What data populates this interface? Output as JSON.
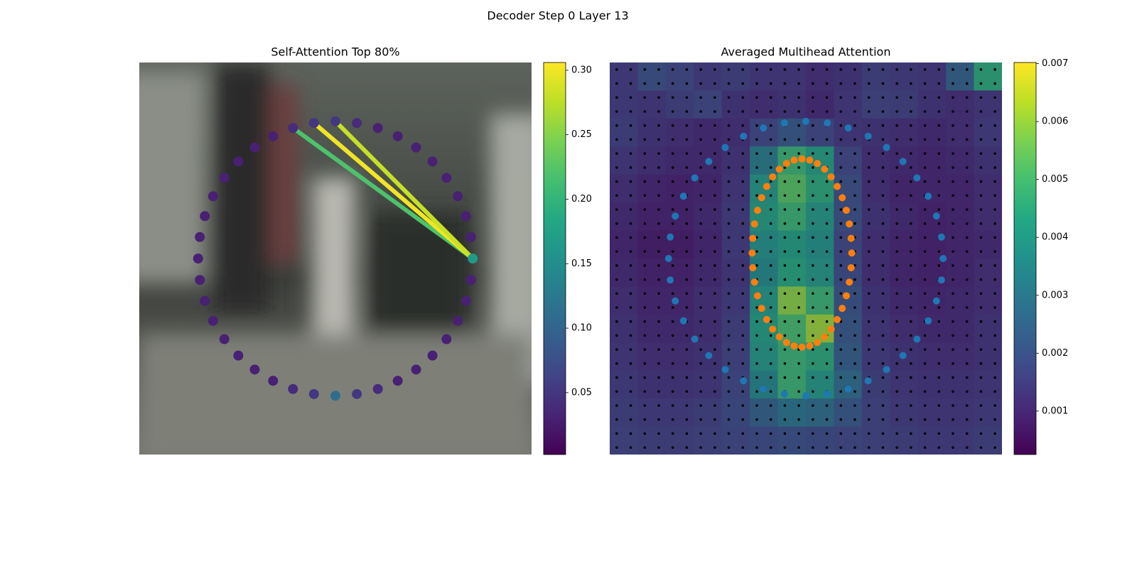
{
  "title": "Decoder Step 0 Layer 13",
  "chart_data": [
    {
      "type": "attention-scatter",
      "title": "Self-Attention Top 80%",
      "xlim": [
        0,
        100
      ],
      "ylim": [
        100,
        0
      ],
      "x": [
        85,
        84.57,
        83.29,
        81.19,
        78.32,
        74.75,
        70.57,
        65.89,
        60.82,
        55.47,
        50,
        44.53,
        39.18,
        34.11,
        29.43,
        25.25,
        21.68,
        18.81,
        16.71,
        15.43,
        15,
        15.43,
        16.71,
        18.81,
        21.68,
        25.25,
        29.43,
        34.11,
        39.18,
        44.53,
        50,
        55.47,
        60.82,
        65.89,
        70.57,
        74.75,
        78.32,
        81.19,
        83.29,
        84.57
      ],
      "y": [
        50,
        55.47,
        60.82,
        65.89,
        70.57,
        74.75,
        78.32,
        81.19,
        83.29,
        84.57,
        85,
        84.57,
        83.29,
        81.19,
        78.32,
        74.75,
        70.57,
        65.89,
        60.82,
        55.47,
        50,
        44.53,
        39.18,
        34.11,
        29.43,
        25.25,
        21.68,
        18.81,
        16.71,
        15.43,
        15,
        15.43,
        16.71,
        18.81,
        21.68,
        25.25,
        29.43,
        34.11,
        39.18,
        44.53
      ],
      "values": [
        0.165,
        0.03,
        0.03,
        0.03,
        0.03,
        0.03,
        0.03,
        0.03,
        0.04,
        0.05,
        0.11,
        0.05,
        0.04,
        0.03,
        0.03,
        0.03,
        0.03,
        0.03,
        0.03,
        0.03,
        0.03,
        0.03,
        0.03,
        0.03,
        0.03,
        0.03,
        0.03,
        0.03,
        0.04,
        0.05,
        0.05,
        0.04,
        0.03,
        0.03,
        0.03,
        0.03,
        0.03,
        0.03,
        0.03,
        0.03
      ],
      "links": [
        {
          "from": 0,
          "to": 28,
          "value": 0.22
        },
        {
          "from": 0,
          "to": 29,
          "value": 0.3
        },
        {
          "from": 0,
          "to": 30,
          "value": 0.28
        }
      ],
      "cmap": "viridis",
      "clim": [
        0.002,
        0.306
      ],
      "cticks": [
        0.05,
        {
          "value": 0.1,
          "label": "0.10"
        },
        0.15,
        {
          "value": 0.2,
          "label": "0.20"
        },
        0.25,
        {
          "value": 0.3,
          "label": "0.30"
        }
      ]
    },
    {
      "type": "heatmap",
      "title": "Averaged Multihead Attention",
      "xlim": [
        0,
        100
      ],
      "ylim": [
        100,
        0
      ],
      "values": [
        [
          0.0015,
          0.002,
          0.0018,
          0.0015,
          0.0016,
          0.0014,
          0.0014,
          0.0012,
          0.0013,
          0.0016,
          0.0015,
          0.0014,
          0.0025,
          0.0045
        ],
        [
          0.0015,
          0.0014,
          0.0016,
          0.0018,
          0.0013,
          0.0012,
          0.0013,
          0.0011,
          0.0014,
          0.0017,
          0.0016,
          0.0013,
          0.0012,
          0.0014
        ],
        [
          0.0016,
          0.0013,
          0.0012,
          0.0011,
          0.0012,
          0.0018,
          0.0022,
          0.0018,
          0.0014,
          0.0013,
          0.0012,
          0.0011,
          0.0012,
          0.0015
        ],
        [
          0.0014,
          0.0012,
          0.0011,
          0.0011,
          0.0013,
          0.0032,
          0.0048,
          0.0042,
          0.0018,
          0.0012,
          0.0011,
          0.001,
          0.0011,
          0.0013
        ],
        [
          0.0012,
          0.001,
          0.0009,
          0.001,
          0.0014,
          0.004,
          0.0052,
          0.0045,
          0.002,
          0.0012,
          0.001,
          0.001,
          0.001,
          0.0012
        ],
        [
          0.0011,
          0.0009,
          0.0009,
          0.0011,
          0.0015,
          0.0042,
          0.0048,
          0.004,
          0.002,
          0.0013,
          0.0011,
          0.0009,
          0.001,
          0.0012
        ],
        [
          0.001,
          0.0008,
          0.0008,
          0.001,
          0.0015,
          0.0038,
          0.0042,
          0.0038,
          0.0018,
          0.0012,
          0.001,
          0.0009,
          0.001,
          0.0011
        ],
        [
          0.0011,
          0.0009,
          0.0009,
          0.0011,
          0.0014,
          0.0036,
          0.0044,
          0.004,
          0.0019,
          0.0012,
          0.001,
          0.0009,
          0.001,
          0.0012
        ],
        [
          0.0012,
          0.001,
          0.001,
          0.0012,
          0.0015,
          0.004,
          0.0058,
          0.0048,
          0.0021,
          0.0013,
          0.0011,
          0.001,
          0.0011,
          0.0012
        ],
        [
          0.0013,
          0.0011,
          0.0011,
          0.0012,
          0.0016,
          0.0042,
          0.005,
          0.006,
          0.0022,
          0.0014,
          0.0012,
          0.0011,
          0.0011,
          0.0013
        ],
        [
          0.0014,
          0.0012,
          0.0012,
          0.0013,
          0.0017,
          0.004,
          0.0048,
          0.0045,
          0.0024,
          0.0015,
          0.0013,
          0.0012,
          0.0012,
          0.0013
        ],
        [
          0.0015,
          0.0013,
          0.0013,
          0.0014,
          0.0018,
          0.0035,
          0.0048,
          0.004,
          0.0028,
          0.0016,
          0.0014,
          0.0013,
          0.0013,
          0.0014
        ],
        [
          0.0016,
          0.0015,
          0.0015,
          0.0016,
          0.0019,
          0.0025,
          0.003,
          0.0028,
          0.0022,
          0.0017,
          0.0015,
          0.0014,
          0.0014,
          0.0015
        ],
        [
          0.0017,
          0.0016,
          0.0016,
          0.0017,
          0.0018,
          0.0019,
          0.002,
          0.0019,
          0.0018,
          0.0017,
          0.0016,
          0.0015,
          0.0015,
          0.0016
        ]
      ],
      "cmap": "viridis",
      "clim": [
        0.00025,
        0.00702
      ],
      "cticks": [
        0.001,
        0.002,
        0.003,
        0.004,
        0.005,
        0.006,
        0.007
      ],
      "series": [
        {
          "color": "#1f77b4",
          "x": [
            85,
            84.57,
            83.29,
            81.19,
            78.32,
            74.75,
            70.57,
            65.89,
            60.82,
            55.47,
            50,
            44.53,
            39.18,
            34.11,
            29.43,
            25.25,
            21.68,
            18.81,
            16.71,
            15.43,
            15,
            15.43,
            16.71,
            18.81,
            21.68,
            25.25,
            29.43,
            34.11,
            39.18,
            44.53,
            50,
            55.47,
            60.82,
            65.89,
            70.57,
            74.75,
            78.32,
            81.19,
            83.29,
            84.57
          ],
          "y": [
            50,
            55.47,
            60.82,
            65.89,
            70.57,
            74.75,
            78.32,
            81.19,
            83.29,
            84.57,
            85,
            84.57,
            83.29,
            81.19,
            78.32,
            74.75,
            70.57,
            65.89,
            60.82,
            55.47,
            50,
            44.53,
            39.18,
            34.11,
            29.43,
            25.25,
            21.68,
            18.81,
            16.71,
            15.43,
            15,
            15.43,
            16.71,
            18.81,
            21.68,
            25.25,
            29.43,
            34.11,
            39.18,
            44.53
          ]
        },
        {
          "color": "#ff7f0e",
          "x": [
            61.7,
            61.54,
            61.08,
            60.32,
            59.27,
            57.98,
            56.46,
            54.77,
            52.92,
            50.99,
            49,
            47.01,
            45.08,
            43.23,
            41.54,
            40.02,
            38.73,
            37.68,
            36.92,
            36.46,
            36.3,
            36.46,
            36.92,
            37.68,
            38.73,
            40.02,
            41.54,
            43.23,
            45.08,
            47.01,
            49,
            50.99,
            52.92,
            54.77,
            56.46,
            57.98,
            59.27,
            60.32,
            61.08,
            61.54
          ],
          "y": [
            48.6,
            52.35,
            56.02,
            59.5,
            62.71,
            65.57,
            68.02,
            69.98,
            71.43,
            72.3,
            72.6,
            72.3,
            71.43,
            69.98,
            68.02,
            65.57,
            62.71,
            59.5,
            56.02,
            52.35,
            48.6,
            44.85,
            41.18,
            37.7,
            34.49,
            31.63,
            29.18,
            27.22,
            25.77,
            24.9,
            24.6,
            24.9,
            25.77,
            27.22,
            29.18,
            31.63,
            34.49,
            37.7,
            41.18,
            44.85
          ]
        }
      ]
    }
  ]
}
